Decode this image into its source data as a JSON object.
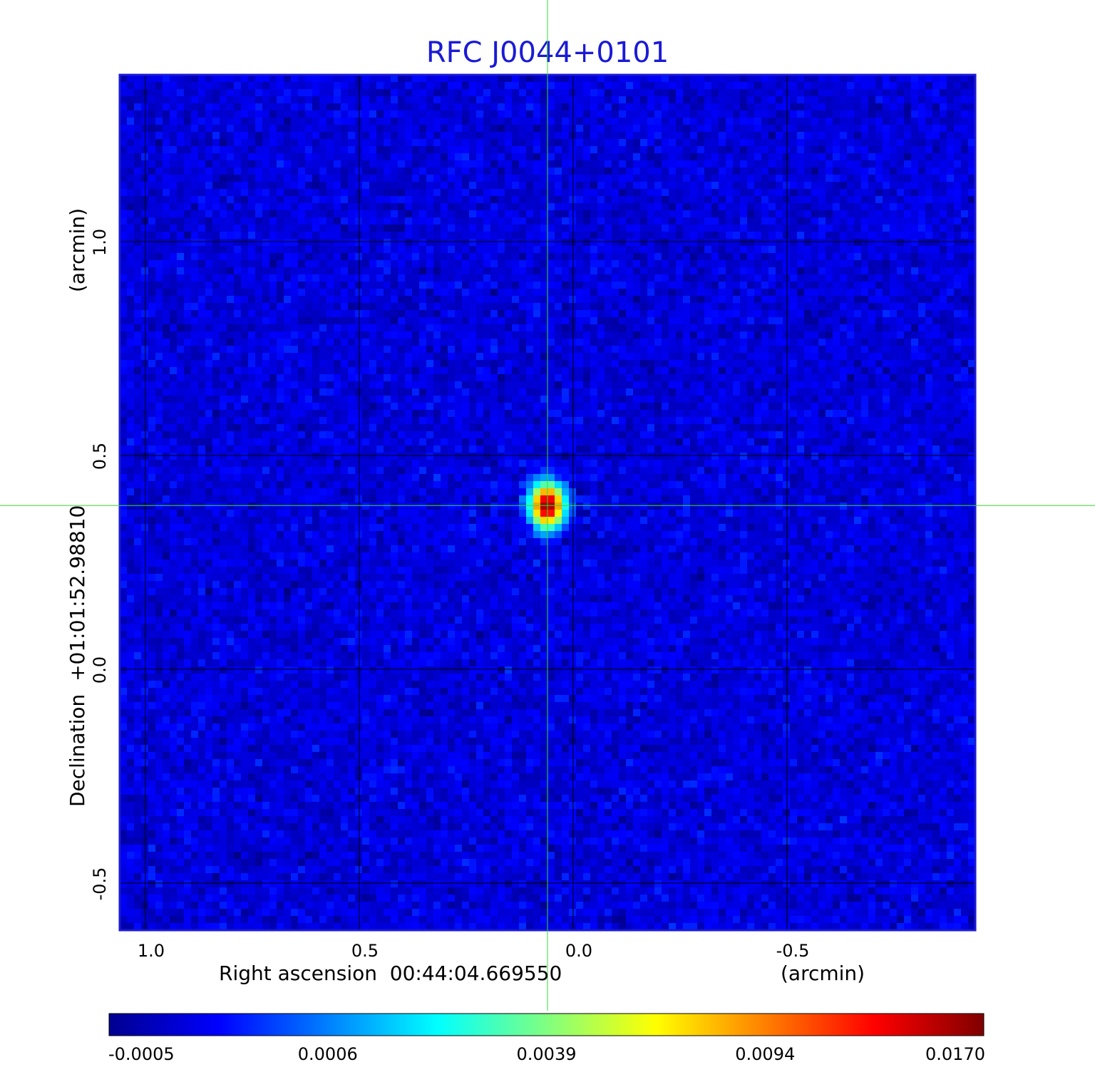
{
  "chart_data": {
    "type": "heatmap",
    "title": "RFC J0044+0101",
    "xlabel": "Right ascension  00:44:04.669550",
    "xunit": "(arcmin)",
    "ylabel": "Declination  +01:01:52.98810",
    "yunit": "(arcmin)",
    "xlim": [
      1.06,
      -0.94
    ],
    "ylim": [
      -0.61,
      1.39
    ],
    "x_ticks": [
      {
        "value": 1.0,
        "label": "1.0"
      },
      {
        "value": 0.5,
        "label": "0.5"
      },
      {
        "value": 0.0,
        "label": "0.0"
      },
      {
        "value": -0.5,
        "label": "-0.5"
      }
    ],
    "y_ticks": [
      {
        "value": 1.0,
        "label": "1.0"
      },
      {
        "value": 0.5,
        "label": "0.5"
      },
      {
        "value": 0.0,
        "label": "0.0"
      },
      {
        "value": -0.5,
        "label": "-0.5"
      }
    ],
    "grid": true,
    "crosshair": {
      "x": 0.06,
      "y": 0.383,
      "color": "#33dd33"
    },
    "source_peak": {
      "x": 0.06,
      "y": 0.383,
      "value": 0.017
    },
    "background_level": -0.0001,
    "colormap": "jet",
    "colorbar": {
      "position": "bottom",
      "ticks": [
        {
          "value": -0.0005,
          "label": "-0.0005",
          "frac": 0.0
        },
        {
          "value": 0.0006,
          "label": "0.0006",
          "frac": 0.25
        },
        {
          "value": 0.0039,
          "label": "0.0039",
          "frac": 0.5
        },
        {
          "value": 0.0094,
          "label": "0.0094",
          "frac": 0.75
        },
        {
          "value": 0.017,
          "label": "0.0170",
          "frac": 1.0
        }
      ]
    },
    "colors": {
      "axis_frame": "#1a1ad6",
      "title": "#1a1ad6",
      "grid": "#000000"
    }
  }
}
